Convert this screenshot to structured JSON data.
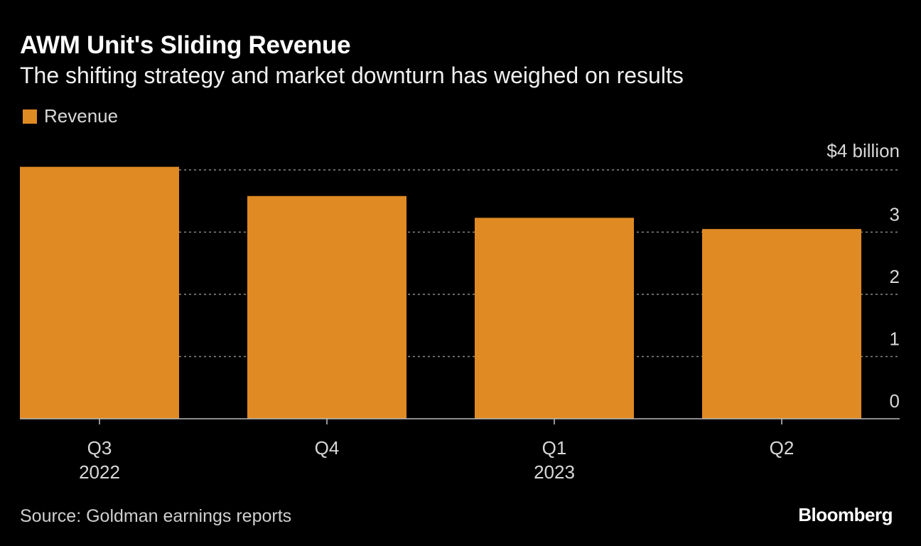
{
  "header": {
    "title": "AWM Unit's Sliding Revenue",
    "subtitle": "The shifting strategy and market downturn has weighed on results"
  },
  "footer": {
    "source": "Source: Goldman earnings reports",
    "brand": "Bloomberg"
  },
  "colors": {
    "bar": "#e08a24",
    "background": "#000000",
    "grid": "#8a8a8a",
    "axis": "#bbbbbb"
  },
  "chart_data": {
    "type": "bar",
    "title": "AWM Unit's Sliding Revenue",
    "subtitle": "The shifting strategy and market downturn has weighed on results",
    "legend": [
      "Revenue"
    ],
    "legend_position": "top-left",
    "categories": [
      "Q3",
      "Q4",
      "Q1",
      "Q2"
    ],
    "category_years": [
      "2022",
      "",
      "2023",
      ""
    ],
    "series": [
      {
        "name": "Revenue",
        "values": [
          4.05,
          3.58,
          3.23,
          3.05
        ]
      }
    ],
    "ylim": [
      0,
      4
    ],
    "yticks": [
      0,
      1,
      2,
      3,
      4
    ],
    "ytick_labels": [
      "0",
      "1",
      "2",
      "3",
      "$4 billion"
    ],
    "ylabel": "",
    "xlabel": "",
    "grid": true,
    "yaxis_position": "right"
  }
}
